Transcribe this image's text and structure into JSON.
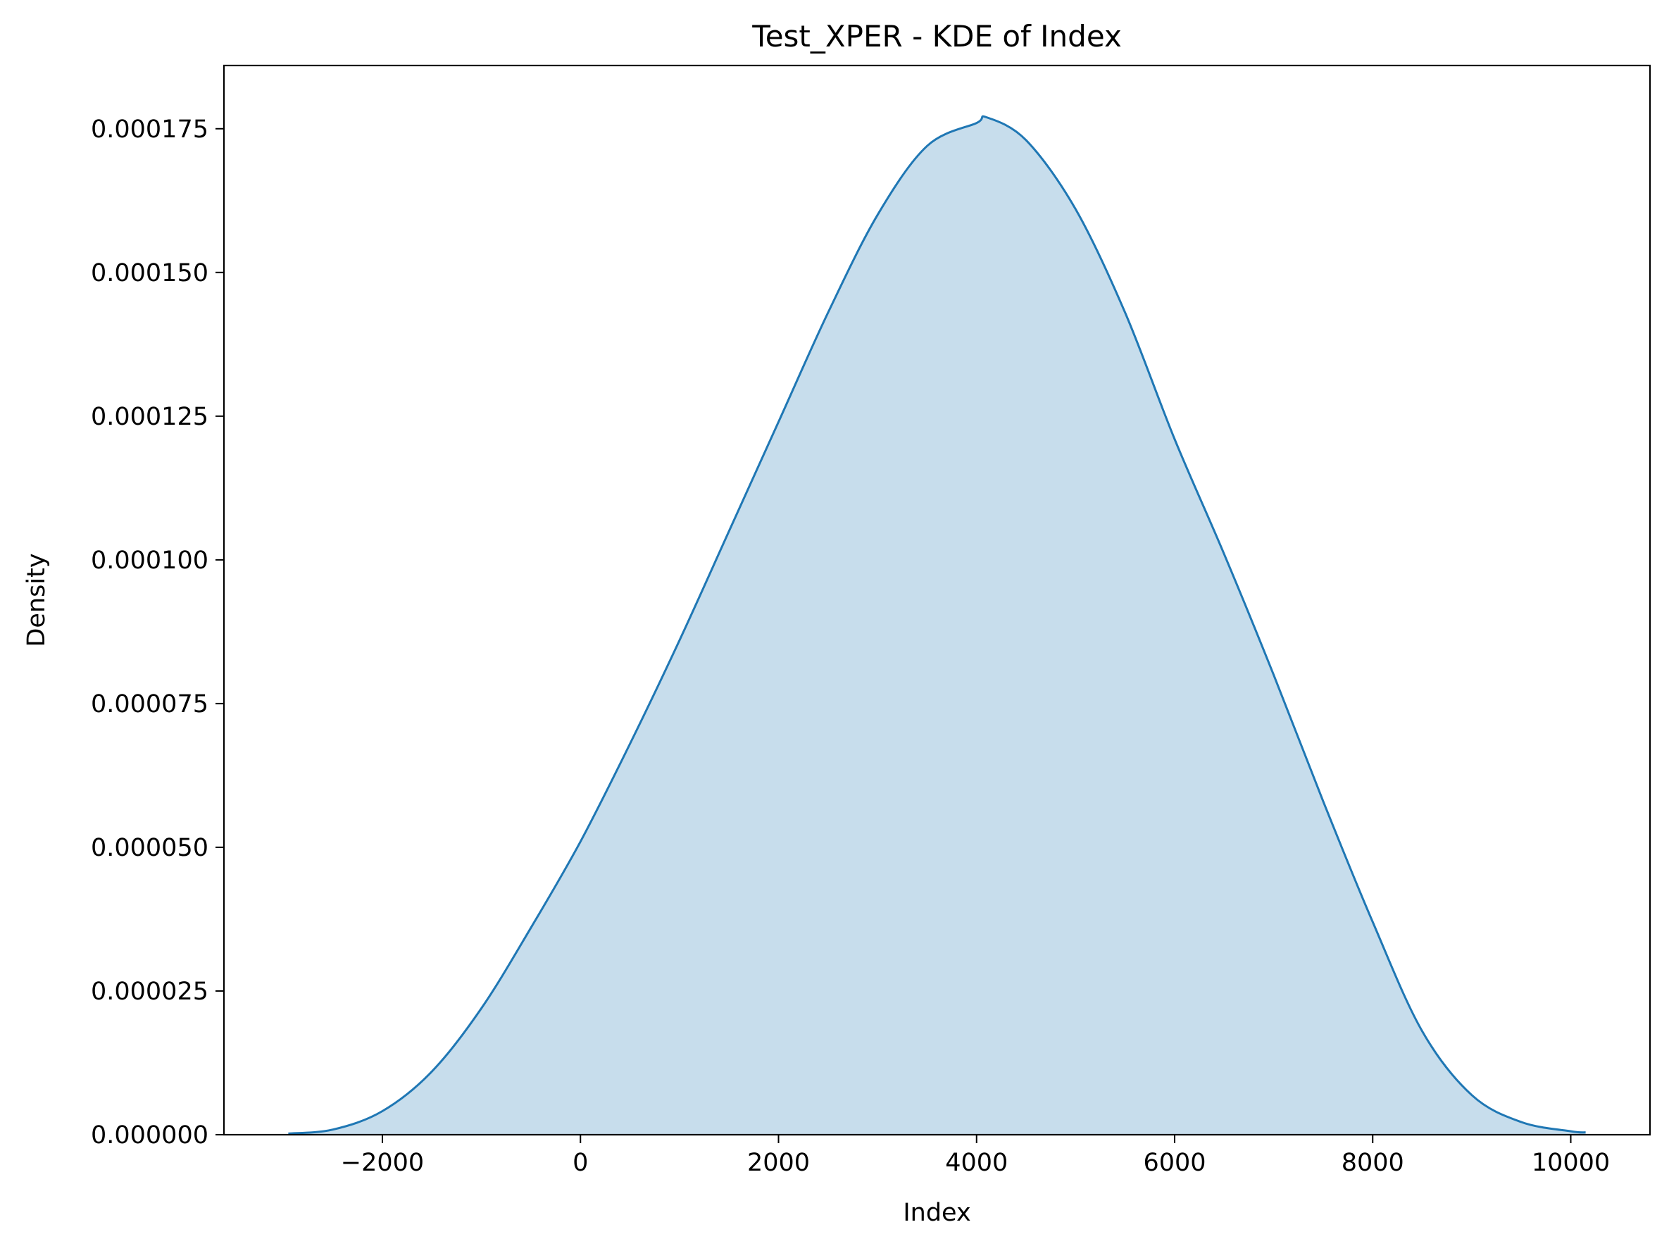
{
  "chart_data": {
    "type": "area",
    "title": "Test_XPER - KDE of Index",
    "xlabel": "Index",
    "ylabel": "Density",
    "xlim": [
      -3600,
      10800
    ],
    "ylim": [
      0,
      0.000186
    ],
    "x_ticks": [
      -2000,
      0,
      2000,
      4000,
      6000,
      8000,
      10000
    ],
    "x_tick_labels": [
      "−2000",
      "0",
      "2000",
      "4000",
      "6000",
      "8000",
      "10000"
    ],
    "y_ticks": [
      0,
      2.5e-05,
      5e-05,
      7.5e-05,
      0.0001,
      0.000125,
      0.00015,
      0.000175
    ],
    "y_tick_labels": [
      "0.000000",
      "0.000025",
      "0.000050",
      "0.000075",
      "0.000100",
      "0.000125",
      "0.000150",
      "0.000175"
    ],
    "grid": false,
    "colors": {
      "line": "#1f77b4",
      "fill": "#1f77b4",
      "fill_opacity": 0.25
    },
    "series": [
      {
        "x": [
          -2950,
          -2500,
          -2000,
          -1500,
          -1000,
          -500,
          0,
          500,
          1000,
          1500,
          2000,
          2500,
          3000,
          3500,
          4000,
          4100,
          4500,
          5000,
          5500,
          6000,
          6500,
          7000,
          7500,
          8000,
          8500,
          9000,
          9500,
          10000,
          10150
        ],
        "y": [
          2e-07,
          9e-07,
          4.1e-06,
          1.1e-05,
          2.2e-05,
          3.6e-05,
          5.1e-05,
          6.8e-05,
          8.6e-05,
          0.000105,
          0.000124,
          0.000143,
          0.00016,
          0.000172,
          0.000176,
          0.000177,
          0.000173,
          0.000161,
          0.000143,
          0.000121,
          0.000101,
          8e-05,
          5.8e-05,
          3.7e-05,
          1.8e-05,
          6.9e-06,
          2.2e-06,
          6e-07,
          4e-07
        ]
      }
    ]
  }
}
